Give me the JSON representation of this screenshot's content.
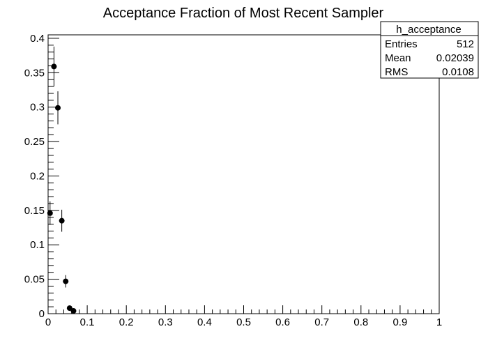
{
  "chart_data": {
    "type": "scatter",
    "title": "Acceptance Fraction of Most Recent Sampler",
    "xlabel": "",
    "ylabel": "",
    "xlim": [
      0,
      1
    ],
    "ylim": [
      0,
      0.405
    ],
    "x_ticks": [
      0,
      0.1,
      0.2,
      0.3,
      0.4,
      0.5,
      0.6,
      0.7,
      0.8,
      0.9,
      1
    ],
    "x_tick_labels": [
      "0",
      "0.1",
      "0.2",
      "0.3",
      "0.4",
      "0.5",
      "0.6",
      "0.7",
      "0.8",
      "0.9",
      "1"
    ],
    "y_ticks": [
      0,
      0.05,
      0.1,
      0.15,
      0.2,
      0.25,
      0.3,
      0.35,
      0.4
    ],
    "y_tick_labels": [
      "0",
      "0.05",
      "0.1",
      "0.15",
      "0.2",
      "0.25",
      "0.3",
      "0.35",
      "0.4"
    ],
    "grid": false,
    "legend_position": "top-right",
    "series": [
      {
        "x": [
          0.005,
          0.015,
          0.025,
          0.035,
          0.045,
          0.055,
          0.065
        ],
        "y": [
          0.146,
          0.359,
          0.299,
          0.135,
          0.047,
          0.008,
          0.004
        ],
        "x_err": [
          0.005,
          0.005,
          0.005,
          0.005,
          0.005,
          0.005,
          0.005
        ],
        "y_err": [
          0.017,
          0.029,
          0.024,
          0.016,
          0.009,
          0.004,
          0.003
        ]
      }
    ],
    "stats_box": {
      "name": "h_acceptance",
      "rows": [
        {
          "label": "Entries",
          "value": "512"
        },
        {
          "label": "Mean",
          "value": "0.02039"
        },
        {
          "label": "RMS",
          "value": "0.0108"
        }
      ]
    }
  },
  "colors": {
    "background": "#ffffff",
    "axis": "#000000",
    "marker": "#000000"
  }
}
